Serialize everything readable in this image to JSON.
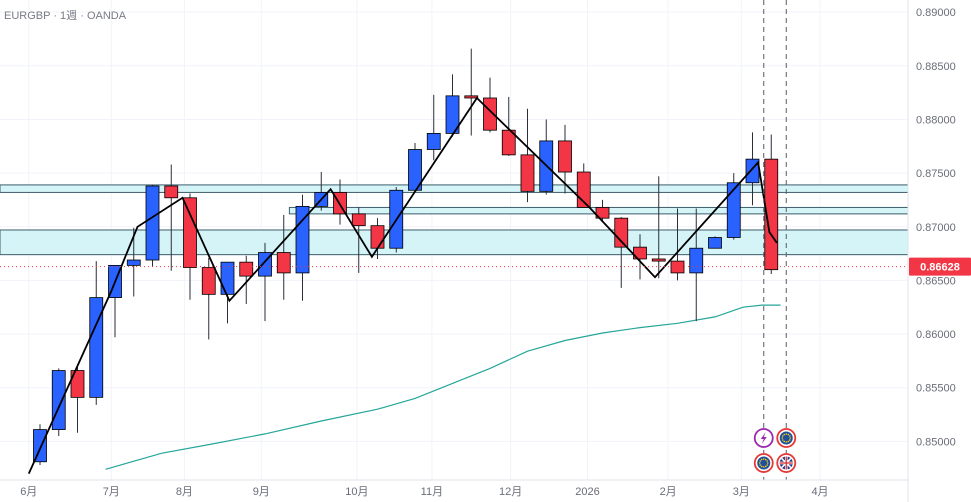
{
  "header": {
    "symbol": "EURGBP",
    "interval": "1週",
    "broker": "OANDA",
    "separator": " · "
  },
  "colors": {
    "up": "#2962ff",
    "down": "#f23645",
    "wick": "#2a2e39",
    "zigzag": "#000000",
    "ma": "#26a69a",
    "zone_fill": "#d4f4f7",
    "zone_stroke": "#3d5d6b",
    "badge": "#f23645",
    "grid": "#f0f3fa",
    "text": "#6a6d78"
  },
  "chart_data": {
    "type": "candlestick",
    "symbol": "EURGBP",
    "timeframe": "1週",
    "y_range": [
      0.8464,
      0.8902
    ],
    "y_ticks": [
      "0.89000",
      "0.88500",
      "0.88000",
      "0.87500",
      "0.87000",
      "0.86500",
      "0.86000",
      "0.85500",
      "0.85000"
    ],
    "x_labels": [
      {
        "label": "6月",
        "index": -0.6
      },
      {
        "label": "7月",
        "index": 3.8
      },
      {
        "label": "8月",
        "index": 7.7
      },
      {
        "label": "9月",
        "index": 11.8
      },
      {
        "label": "10月",
        "index": 16.9
      },
      {
        "label": "11月",
        "index": 20.9
      },
      {
        "label": "12月",
        "index": 25.1
      },
      {
        "label": "2026",
        "index": 29.2
      },
      {
        "label": "2月",
        "index": 33.5
      },
      {
        "label": "3月",
        "index": 37.4
      },
      {
        "label": "4月",
        "index": 41.6
      }
    ],
    "candles": [
      {
        "o": 0.8481,
        "h": 0.8516,
        "l": 0.8478,
        "c": 0.8511
      },
      {
        "o": 0.8511,
        "h": 0.8568,
        "l": 0.8505,
        "c": 0.8566
      },
      {
        "o": 0.8566,
        "h": 0.8572,
        "l": 0.8508,
        "c": 0.8541
      },
      {
        "o": 0.8541,
        "h": 0.8668,
        "l": 0.8534,
        "c": 0.8634
      },
      {
        "o": 0.8634,
        "h": 0.8663,
        "l": 0.8597,
        "c": 0.8664
      },
      {
        "o": 0.8664,
        "h": 0.8699,
        "l": 0.8635,
        "c": 0.8669
      },
      {
        "o": 0.8669,
        "h": 0.8739,
        "l": 0.8663,
        "c": 0.8738
      },
      {
        "o": 0.8738,
        "h": 0.8758,
        "l": 0.8659,
        "c": 0.8727
      },
      {
        "o": 0.8727,
        "h": 0.8731,
        "l": 0.8632,
        "c": 0.8662
      },
      {
        "o": 0.8662,
        "h": 0.8671,
        "l": 0.8595,
        "c": 0.8637
      },
      {
        "o": 0.8637,
        "h": 0.8667,
        "l": 0.861,
        "c": 0.8667
      },
      {
        "o": 0.8667,
        "h": 0.8673,
        "l": 0.8628,
        "c": 0.8654
      },
      {
        "o": 0.8654,
        "h": 0.8685,
        "l": 0.8612,
        "c": 0.8676
      },
      {
        "o": 0.8676,
        "h": 0.8711,
        "l": 0.8632,
        "c": 0.8657
      },
      {
        "o": 0.8657,
        "h": 0.873,
        "l": 0.8631,
        "c": 0.8719
      },
      {
        "o": 0.8719,
        "h": 0.8751,
        "l": 0.8715,
        "c": 0.8732
      },
      {
        "o": 0.8732,
        "h": 0.8744,
        "l": 0.8702,
        "c": 0.8712
      },
      {
        "o": 0.8712,
        "h": 0.8718,
        "l": 0.8657,
        "c": 0.8701
      },
      {
        "o": 0.8701,
        "h": 0.8708,
        "l": 0.867,
        "c": 0.868
      },
      {
        "o": 0.868,
        "h": 0.8737,
        "l": 0.8676,
        "c": 0.8734
      },
      {
        "o": 0.8734,
        "h": 0.8778,
        "l": 0.8734,
        "c": 0.8772
      },
      {
        "o": 0.8772,
        "h": 0.8823,
        "l": 0.8762,
        "c": 0.8787
      },
      {
        "o": 0.8787,
        "h": 0.8842,
        "l": 0.8784,
        "c": 0.8822
      },
      {
        "o": 0.8822,
        "h": 0.8866,
        "l": 0.8785,
        "c": 0.882
      },
      {
        "o": 0.882,
        "h": 0.8839,
        "l": 0.8788,
        "c": 0.879
      },
      {
        "o": 0.879,
        "h": 0.8821,
        "l": 0.8766,
        "c": 0.8767
      },
      {
        "o": 0.8767,
        "h": 0.881,
        "l": 0.8723,
        "c": 0.8733
      },
      {
        "o": 0.8733,
        "h": 0.88,
        "l": 0.873,
        "c": 0.878
      },
      {
        "o": 0.878,
        "h": 0.8795,
        "l": 0.8731,
        "c": 0.8751
      },
      {
        "o": 0.8751,
        "h": 0.8759,
        "l": 0.8718,
        "c": 0.8718
      },
      {
        "o": 0.8718,
        "h": 0.8725,
        "l": 0.8705,
        "c": 0.8708
      },
      {
        "o": 0.8708,
        "h": 0.8709,
        "l": 0.8643,
        "c": 0.8681
      },
      {
        "o": 0.8681,
        "h": 0.8693,
        "l": 0.8651,
        "c": 0.867
      },
      {
        "o": 0.867,
        "h": 0.8747,
        "l": 0.8652,
        "c": 0.8668
      },
      {
        "o": 0.8668,
        "h": 0.8717,
        "l": 0.865,
        "c": 0.8657
      },
      {
        "o": 0.8657,
        "h": 0.8717,
        "l": 0.8612,
        "c": 0.868
      },
      {
        "o": 0.868,
        "h": 0.8691,
        "l": 0.8683,
        "c": 0.869
      },
      {
        "o": 0.869,
        "h": 0.875,
        "l": 0.8688,
        "c": 0.8741
      },
      {
        "o": 0.8741,
        "h": 0.8788,
        "l": 0.872,
        "c": 0.8763
      },
      {
        "o": 0.8763,
        "h": 0.8786,
        "l": 0.8656,
        "c": 0.866
      }
    ],
    "moving_average": [
      {
        "i": 3.5,
        "v": 0.8474
      },
      {
        "i": 6.5,
        "v": 0.8489
      },
      {
        "i": 9,
        "v": 0.8497
      },
      {
        "i": 12,
        "v": 0.8507
      },
      {
        "i": 15,
        "v": 0.8519
      },
      {
        "i": 18,
        "v": 0.853
      },
      {
        "i": 20,
        "v": 0.854
      },
      {
        "i": 22,
        "v": 0.8554
      },
      {
        "i": 24,
        "v": 0.8568
      },
      {
        "i": 26,
        "v": 0.8584
      },
      {
        "i": 28,
        "v": 0.8594
      },
      {
        "i": 30,
        "v": 0.8601
      },
      {
        "i": 32,
        "v": 0.8606
      },
      {
        "i": 34,
        "v": 0.861
      },
      {
        "i": 36,
        "v": 0.8616
      },
      {
        "i": 37.5,
        "v": 0.8625
      },
      {
        "i": 38.5,
        "v": 0.8627
      },
      {
        "i": 39.5,
        "v": 0.8627
      }
    ],
    "zigzag": [
      {
        "i": -0.6,
        "v": 0.847
      },
      {
        "i": 3.8,
        "v": 0.864
      },
      {
        "i": 5.2,
        "v": 0.87
      },
      {
        "i": 7.6,
        "v": 0.8727
      },
      {
        "i": 10.1,
        "v": 0.8631
      },
      {
        "i": 15.5,
        "v": 0.8735
      },
      {
        "i": 17.7,
        "v": 0.8672
      },
      {
        "i": 23.3,
        "v": 0.882
      },
      {
        "i": 29.3,
        "v": 0.8718
      },
      {
        "i": 32.8,
        "v": 0.8653
      },
      {
        "i": 38.3,
        "v": 0.876
      },
      {
        "i": 38.9,
        "v": 0.8695
      },
      {
        "i": 39.3,
        "v": 0.8685
      }
    ],
    "zones": [
      {
        "top": 0.8739,
        "bottom": 0.8732
      },
      {
        "top": 0.8718,
        "bottom": 0.8712
      },
      {
        "top": 0.8697,
        "bottom": 0.8674
      }
    ],
    "current_price": "0.86628",
    "current_value": 0.86628,
    "vertical_dashes": [
      38.6,
      39.8
    ],
    "event_icons": [
      {
        "index": 38.6,
        "row": 0,
        "icon": "lightning-icon"
      },
      {
        "index": 39.8,
        "row": 0,
        "icon": "eu-flag-icon"
      },
      {
        "index": 38.6,
        "row": 1,
        "icon": "eu-flag-icon"
      },
      {
        "index": 39.8,
        "row": 1,
        "icon": "uk-flag-icon"
      }
    ]
  }
}
